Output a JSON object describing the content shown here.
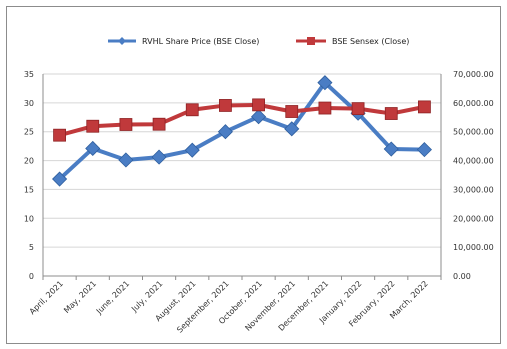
{
  "chart_data": {
    "type": "line",
    "title": "",
    "categories": [
      "April, 2021",
      "May, 2021",
      "June, 2021",
      "July, 2021",
      "August, 2021",
      "September, 2021",
      "October, 2021",
      "November, 2021",
      "December, 2021",
      "January, 2022",
      "February, 2022",
      "March, 2022"
    ],
    "series": [
      {
        "name": "RVHL Share Price (BSE Close)",
        "axis": "left",
        "color": "#4a7dc4",
        "marker": "diamond",
        "values": [
          16.8,
          22.1,
          20.1,
          20.6,
          21.8,
          25.0,
          27.6,
          25.5,
          33.5,
          28.2,
          22.0,
          21.9
        ]
      },
      {
        "name": "BSE Sensex (Close)",
        "axis": "right",
        "color": "#c0393b",
        "marker": "square",
        "values": [
          48800,
          51900,
          52500,
          52600,
          57600,
          59100,
          59300,
          57000,
          58200,
          58000,
          56300,
          58600
        ]
      }
    ],
    "left_axis": {
      "min": 0,
      "max": 35,
      "ticks": [
        "0",
        "5",
        "10",
        "15",
        "20",
        "25",
        "30",
        "35"
      ]
    },
    "right_axis": {
      "min": 0,
      "max": 70000,
      "ticks": [
        "0.00",
        "10,000.00",
        "20,000.00",
        "30,000.00",
        "40,000.00",
        "50,000.00",
        "60,000.00",
        "70,000.00"
      ]
    },
    "xlabel": "",
    "ylabel": "",
    "grid": "horizontal",
    "legend": "top-center"
  }
}
